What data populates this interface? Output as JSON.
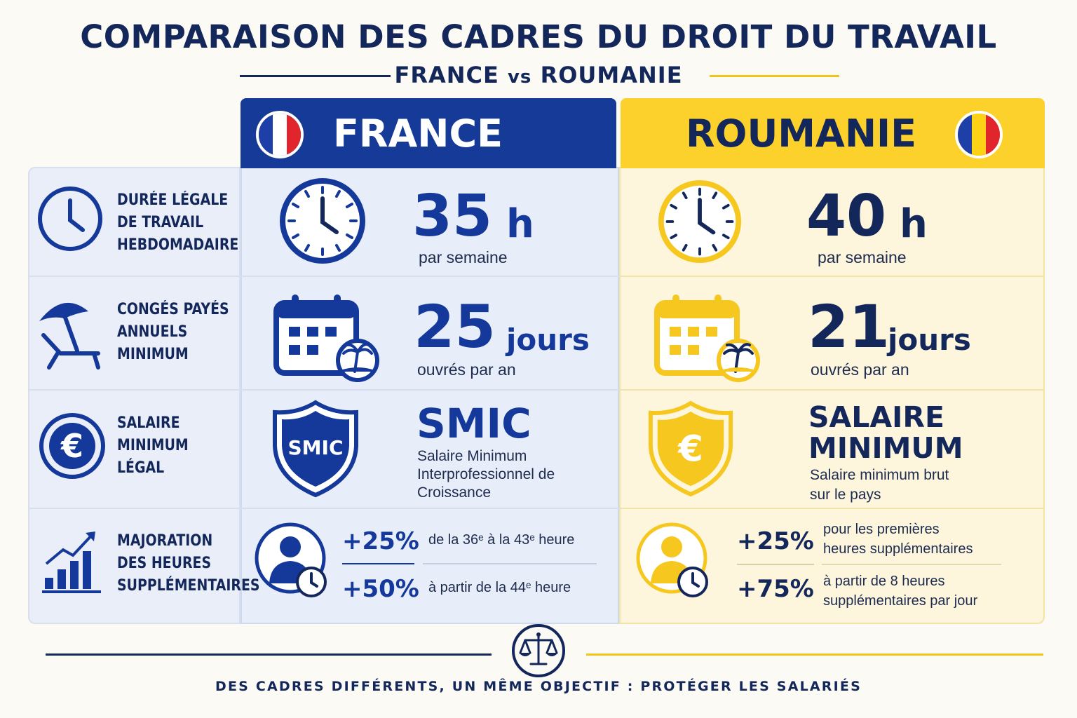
{
  "title": "COMPARAISON DES CADRES DU DROIT DU TRAVAIL",
  "subtitle": {
    "left": "FRANCE",
    "vs": "vs",
    "right": "ROUMANIE"
  },
  "colors": {
    "navy": "#13275b",
    "france_blue": "#153a97",
    "romania_yellow": "#fdd12c",
    "flag_red": "#e0262c"
  },
  "columns": {
    "france": "FRANCE",
    "romania": "ROUMANIE"
  },
  "rows": {
    "hours": {
      "label": [
        "DURÉE LÉGALE",
        "DE TRAVAIL",
        "HEBDOMADAIRE"
      ],
      "icon": "clock-icon",
      "france": {
        "value": "35",
        "unit": "h",
        "note": "par semaine"
      },
      "romania": {
        "value": "40",
        "unit": "h",
        "note": "par semaine"
      }
    },
    "leave": {
      "label": [
        "CONGÉS PAYÉS",
        "ANNUELS",
        "MINIMUM"
      ],
      "icon": "beach-umbrella-icon",
      "france": {
        "value": "25",
        "unit": "jours",
        "note": "ouvrés par an"
      },
      "romania": {
        "value": "21",
        "unit": "jours",
        "note": "ouvrés par an"
      }
    },
    "wage": {
      "label": [
        "SALAIRE",
        "MINIMUM",
        "LÉGAL"
      ],
      "icon": "euro-coin-icon",
      "france": {
        "shield_text": "SMIC",
        "title": "SMIC",
        "desc": [
          "Salaire Minimum",
          "Interprofessionnel de",
          "Croissance"
        ]
      },
      "romania": {
        "shield_text": "€",
        "title": [
          "SALAIRE",
          "MINIMUM"
        ],
        "desc": [
          "Salaire minimum brut",
          "sur le pays"
        ]
      }
    },
    "overtime": {
      "label": [
        "MAJORATION",
        "DES HEURES",
        "SUPPLÉMENTAIRES"
      ],
      "icon": "bar-chart-growth-icon",
      "france": {
        "rate1": "+25%",
        "text1": "de la 36ᵉ à la 43ᵉ heure",
        "rate2": "+50%",
        "text2": "à partir de la 44ᵉ heure"
      },
      "romania": {
        "rate1": "+25%",
        "text1": [
          "pour les premières",
          "heures supplémentaires"
        ],
        "rate2": "+75%",
        "text2": [
          "à partir de 8 heures",
          "supplémentaires par jour"
        ]
      }
    }
  },
  "footer": "DES CADRES DIFFÉRENTS, UN MÊME OBJECTIF : PROTÉGER LES SALARIÉS"
}
